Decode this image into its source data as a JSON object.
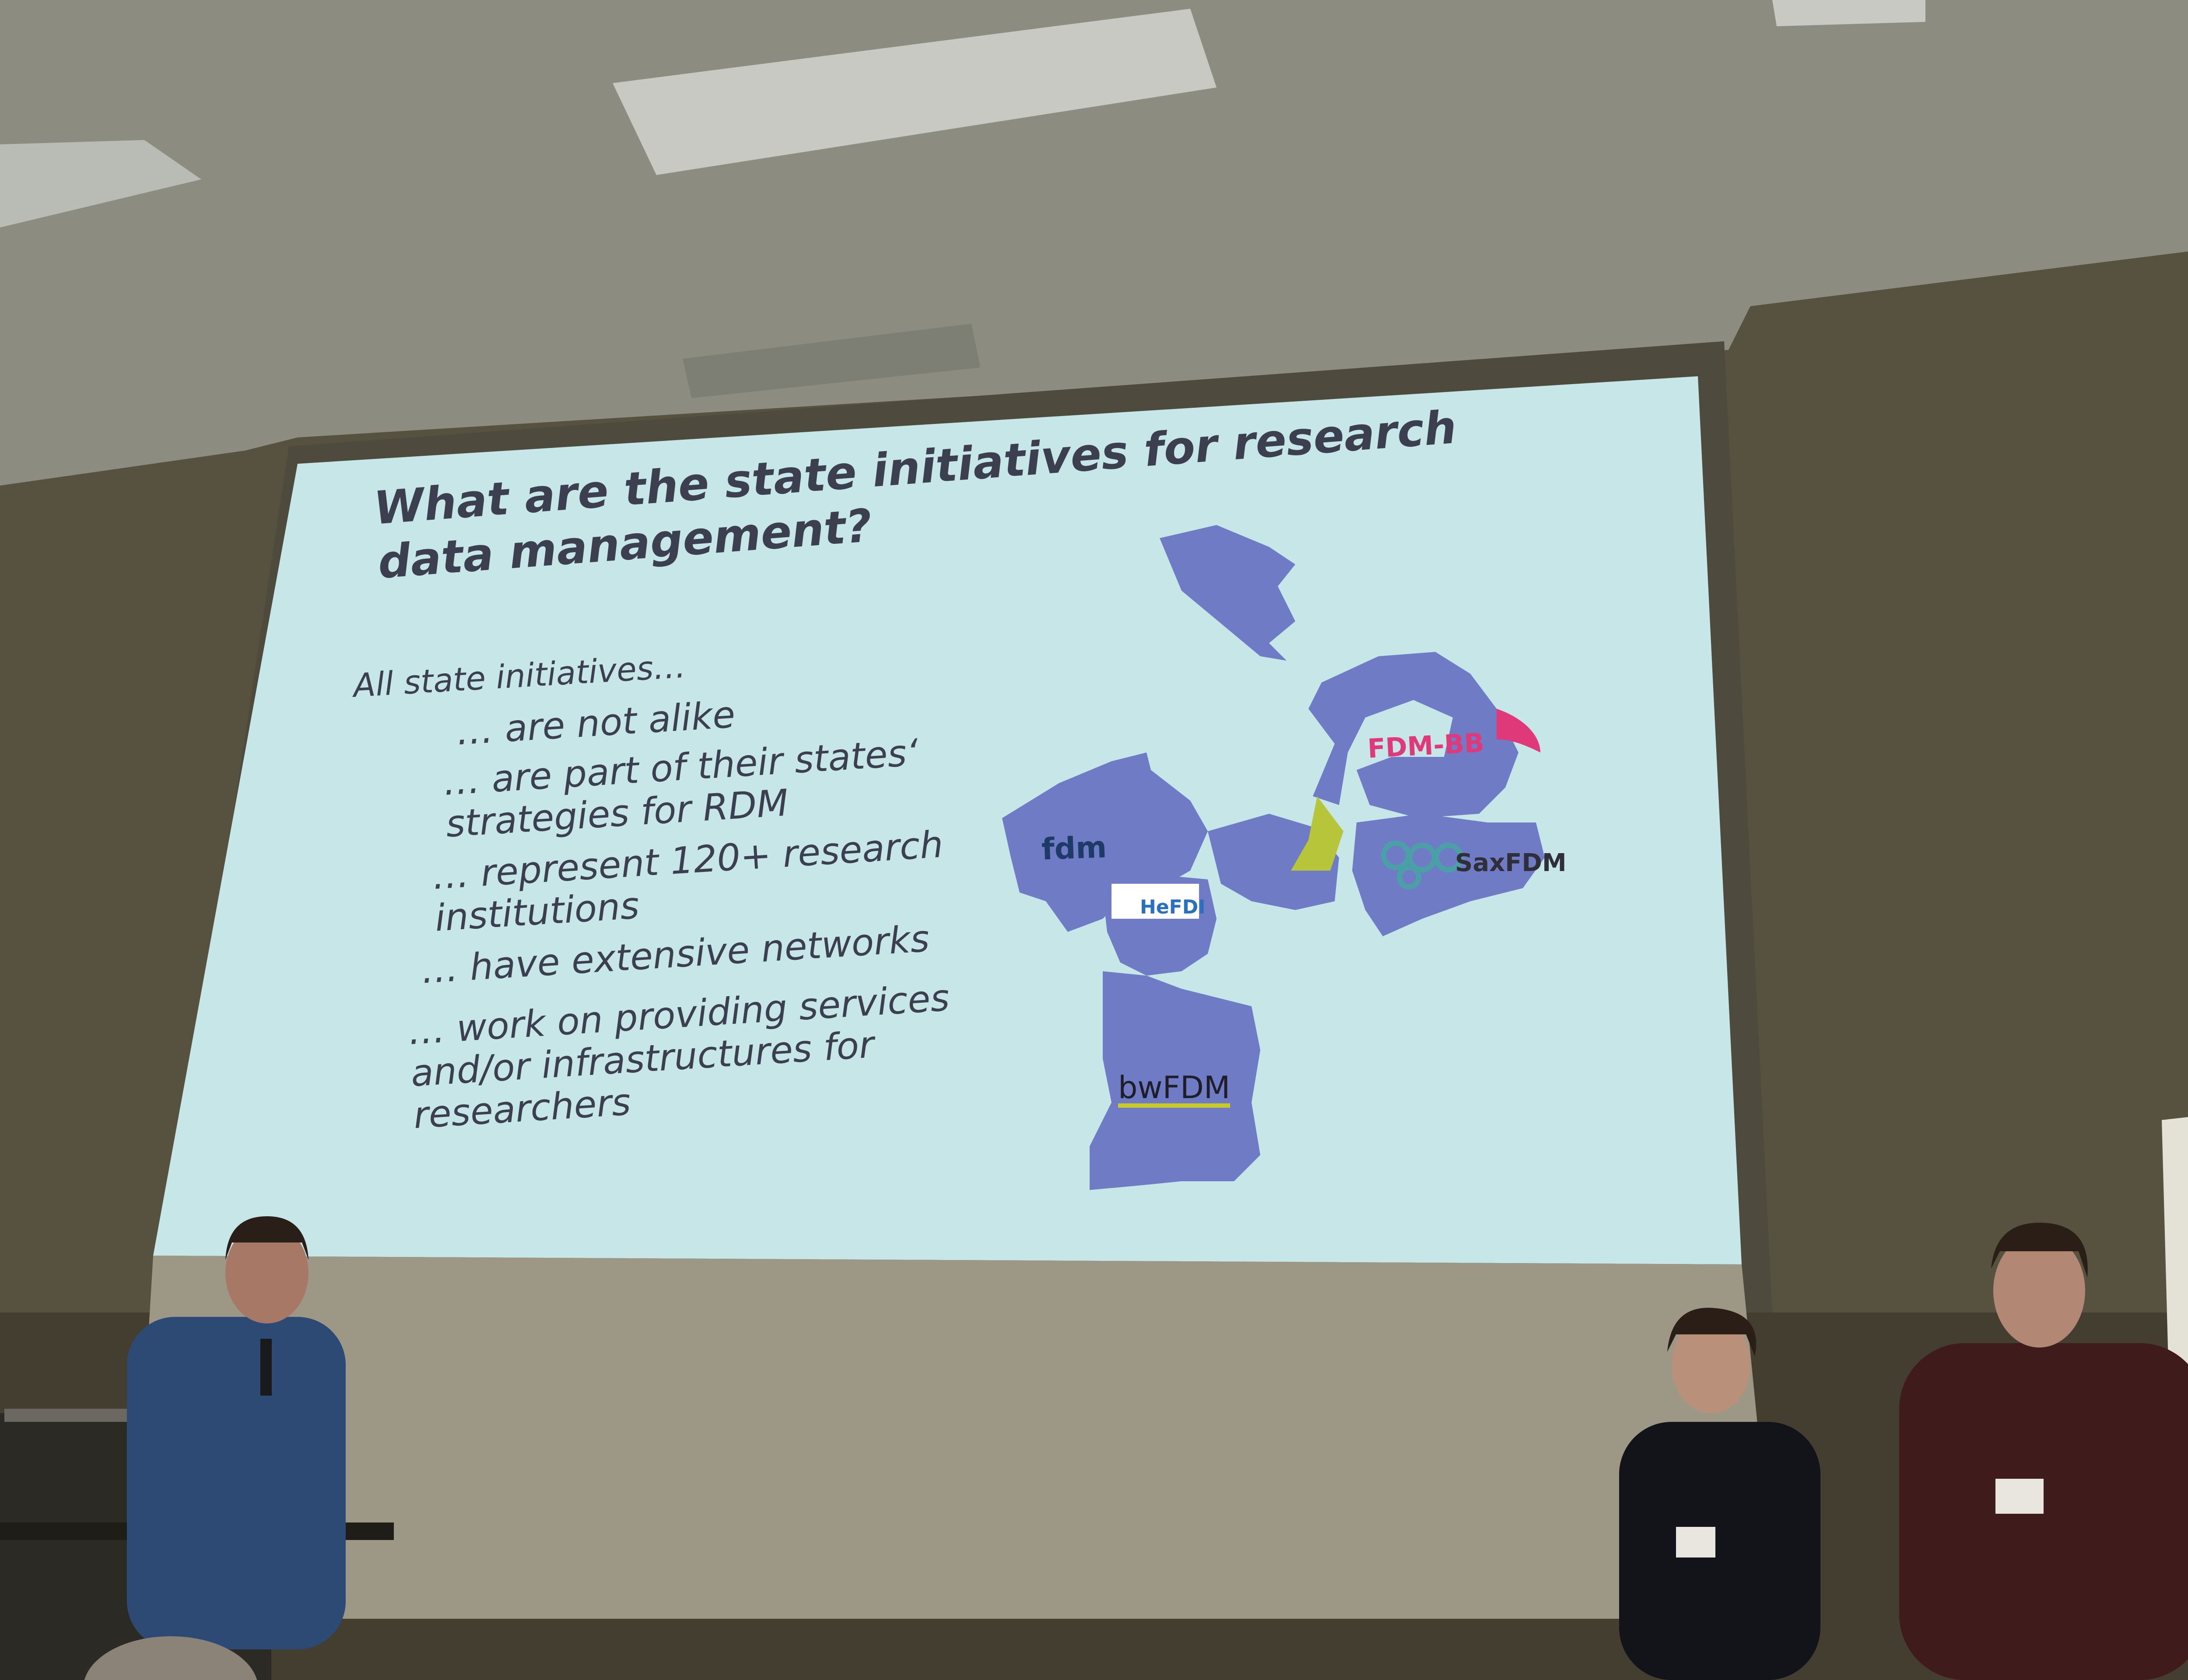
{
  "slide": {
    "title": "What are the state initiatives for research data management?",
    "intro": "All state initiatives…",
    "bullets": [
      "… are not alike",
      "… are part of their states‘ strategies for RDM",
      "… represent 120+ research institutions",
      "… have extensive networks",
      "… work on providing services and/or infrastructures for researchers"
    ],
    "bullet_lines": {
      "b2a": "… are part of their states‘",
      "b2b": "strategies for RDM",
      "b3a": "… represent 120+ research",
      "b3b": "institutions",
      "b5a": "… work on providing services",
      "b5b": "and/or infrastructures for",
      "b5c": "researchers"
    }
  },
  "map_labels": {
    "fdm_bb": "FDM-BB",
    "fdm_nrw": "fdm",
    "hefdi": "HeFDI",
    "saxfdm": "SaxFDM",
    "bwfdm": "bwFDM"
  },
  "colors": {
    "slide_background": "#c6e6e8",
    "map_fill": "#6f7bc4",
    "wall": "#5a5446",
    "ceiling": "#8b8b80",
    "accent_pink": "#e0397a",
    "accent_yellow": "#c9c92a"
  }
}
